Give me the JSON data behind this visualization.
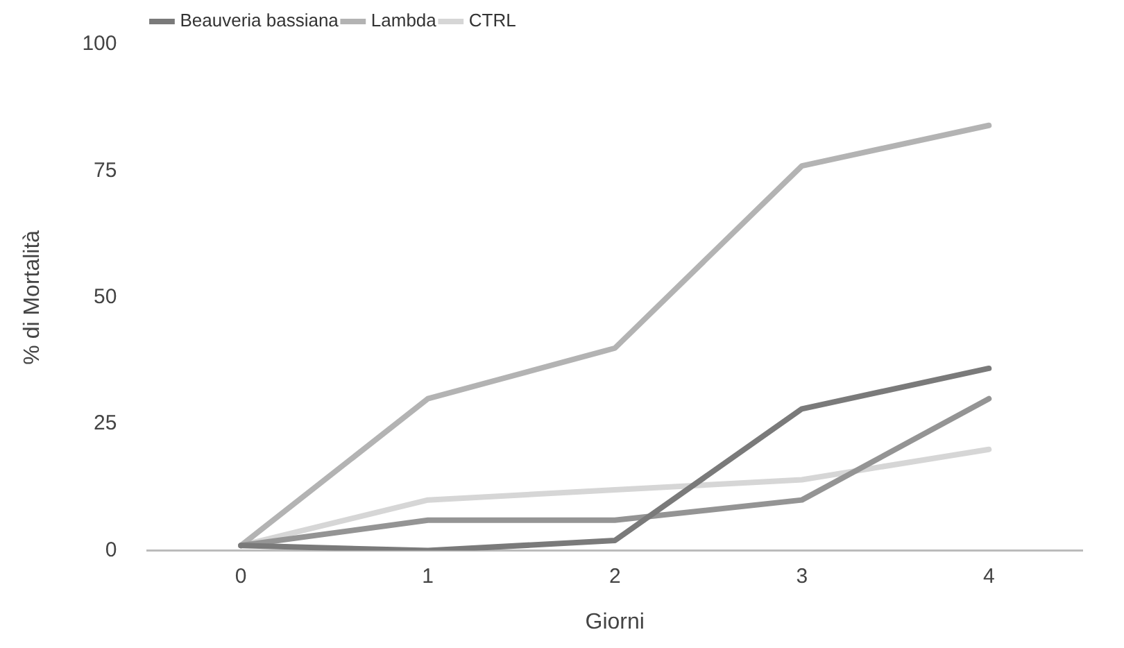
{
  "chart_data": {
    "type": "line",
    "xlabel": "Giorni",
    "ylabel": "% di Mortalità",
    "categories": [
      "0",
      "1",
      "2",
      "3",
      "4"
    ],
    "series": [
      {
        "name": "Beauveria bassiana",
        "color": "#7a7a7a",
        "values": [
          1,
          0,
          2,
          28,
          36
        ]
      },
      {
        "color": "#949494",
        "values": [
          1,
          6,
          6,
          10,
          30
        ]
      },
      {
        "name": "Lambda",
        "color": "#b3b3b3",
        "values": [
          1,
          30,
          40,
          76,
          84
        ]
      },
      {
        "name": "CTRL",
        "color": "#d6d6d6",
        "values": [
          1,
          10,
          12,
          14,
          20
        ]
      }
    ],
    "ylim": [
      0,
      100
    ],
    "yticks": [
      0,
      25,
      50,
      75,
      100
    ],
    "grid": false,
    "legend": "top left",
    "marker": "none",
    "line_style": "solid"
  }
}
